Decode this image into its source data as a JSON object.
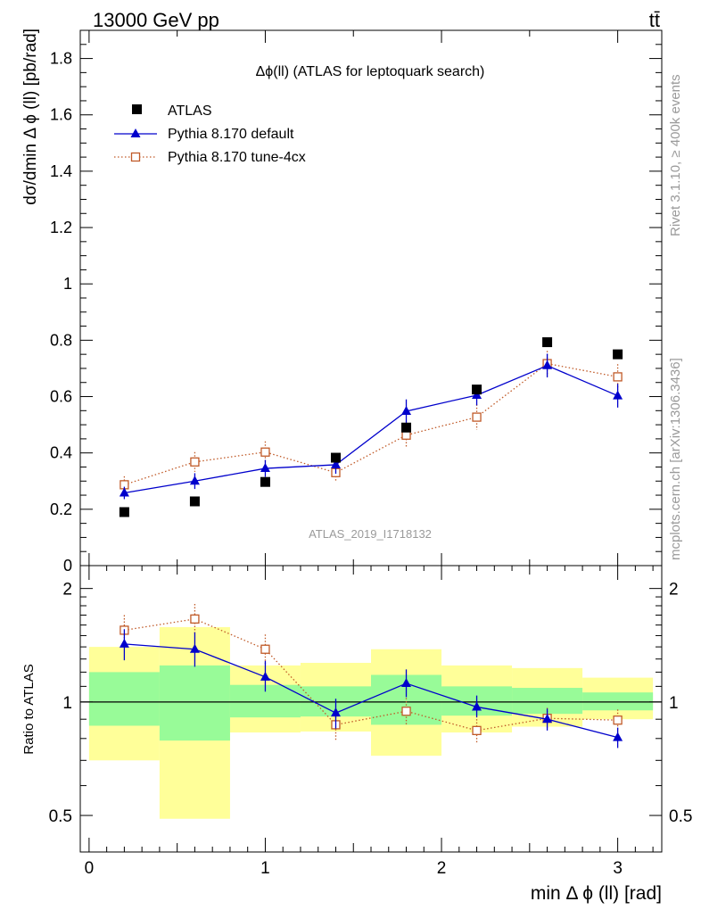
{
  "header": {
    "left": "13000 GeV pp",
    "right": "tt̄"
  },
  "side_labels": {
    "rivet": "Rivet 3.1.10, ≥ 400k events",
    "mcplots": "mcplots.cern.ch [arXiv:1306.3436]"
  },
  "chart_data": [
    {
      "type": "scatter",
      "title": "Δϕ(ll) (ATLAS for leptoquark search)",
      "watermark": "ATLAS_2019_I1718132",
      "xlabel": "min Δ ϕ (ll) [rad]",
      "ylabel": "dσ/dmin Δ ϕ (ll) [pb/rad]",
      "xlim": [
        -0.05,
        3.25
      ],
      "ylim": [
        0,
        1.9
      ],
      "y_ticks": [
        {
          "v": 0,
          "label": "0"
        },
        {
          "v": 0.2,
          "label": "0.2"
        },
        {
          "v": 0.4,
          "label": "0.4"
        },
        {
          "v": 0.6,
          "label": "0.6"
        },
        {
          "v": 0.8,
          "label": "0.8"
        },
        {
          "v": 1.0,
          "label": "1"
        },
        {
          "v": 1.2,
          "label": "1.2"
        },
        {
          "v": 1.4,
          "label": "1.4"
        },
        {
          "v": 1.6,
          "label": "1.6"
        },
        {
          "v": 1.8,
          "label": "1.8"
        }
      ],
      "legend_position": "top-left",
      "series": [
        {
          "name": "ATLAS",
          "style": "data",
          "color": "#000000",
          "x": [
            0.2,
            0.6,
            1.0,
            1.4,
            1.8,
            2.2,
            2.6,
            3.0
          ],
          "y": [
            0.19,
            0.228,
            0.297,
            0.383,
            0.49,
            0.625,
            0.793,
            0.75
          ]
        },
        {
          "name": "Pythia 8.170 default",
          "style": "triangle-solid",
          "color": "#0000cc",
          "x": [
            0.2,
            0.6,
            1.0,
            1.4,
            1.8,
            2.2,
            2.6,
            3.0
          ],
          "y": [
            0.258,
            0.3,
            0.345,
            0.358,
            0.548,
            0.605,
            0.71,
            0.603
          ],
          "err": [
            0.022,
            0.028,
            0.03,
            0.032,
            0.042,
            0.036,
            0.042,
            0.042
          ]
        },
        {
          "name": "Pythia 8.170 tune-4cx",
          "style": "square-dotted",
          "color": "#c05a28",
          "x": [
            0.2,
            0.6,
            1.0,
            1.4,
            1.8,
            2.2,
            2.6,
            3.0
          ],
          "y": [
            0.287,
            0.368,
            0.403,
            0.33,
            0.463,
            0.527,
            0.717,
            0.67
          ],
          "err": [
            0.03,
            0.035,
            0.038,
            0.032,
            0.042,
            0.045,
            0.045,
            0.045
          ]
        }
      ]
    },
    {
      "type": "scatter",
      "ylabel": "Ratio to ATLAS",
      "xlabel": "min Δ ϕ (ll) [rad]",
      "xlim": [
        -0.05,
        3.25
      ],
      "ylim": [
        0.4,
        2.3
      ],
      "y_scale": "log",
      "y_ticks": [
        {
          "v": 0.5,
          "label": "0.5"
        },
        {
          "v": 1,
          "label": "1"
        },
        {
          "v": 2,
          "label": "2"
        }
      ],
      "x_ticks": [
        {
          "v": 0,
          "label": "0"
        },
        {
          "v": 1,
          "label": "1"
        },
        {
          "v": 2,
          "label": "2"
        },
        {
          "v": 3,
          "label": "3"
        }
      ],
      "bands": {
        "bin_edges": [
          0,
          0.4,
          0.8,
          1.2,
          1.6,
          2.0,
          2.4,
          2.8,
          3.2
        ],
        "inner_low": [
          0.865,
          0.79,
          0.91,
          0.915,
          0.87,
          0.92,
          0.93,
          0.95
        ],
        "inner_high": [
          1.2,
          1.25,
          1.11,
          1.1,
          1.18,
          1.1,
          1.09,
          1.06
        ],
        "outer_low": [
          0.7,
          0.49,
          0.83,
          0.835,
          0.72,
          0.83,
          0.86,
          0.9
        ],
        "outer_high": [
          1.4,
          1.58,
          1.25,
          1.27,
          1.38,
          1.25,
          1.23,
          1.16
        ],
        "inner_color": "#98fb98",
        "outer_color": "#ffff99"
      },
      "series": [
        {
          "name": "Pythia 8.170 default",
          "color": "#0000cc",
          "x": [
            0.2,
            0.6,
            1.0,
            1.4,
            1.8,
            2.2,
            2.6,
            3.0
          ],
          "y": [
            1.425,
            1.38,
            1.165,
            0.935,
            1.12,
            0.97,
            0.9,
            0.805
          ],
          "err_low": [
            0.135,
            0.14,
            0.1,
            0.085,
            0.09,
            0.06,
            0.06,
            0.05
          ],
          "err_high": [
            0.135,
            0.15,
            0.12,
            0.085,
            0.1,
            0.07,
            0.06,
            0.05
          ]
        },
        {
          "name": "Pythia 8.170 tune-4cx",
          "color": "#c05a28",
          "x": [
            0.2,
            0.6,
            1.0,
            1.4,
            1.8,
            2.2,
            2.6,
            3.0
          ],
          "y": [
            1.55,
            1.66,
            1.38,
            0.87,
            0.945,
            0.84,
            0.905,
            0.895
          ],
          "err_low": [
            0.14,
            0.15,
            0.12,
            0.08,
            0.08,
            0.06,
            0.06,
            0.06
          ],
          "err_high": [
            0.15,
            0.16,
            0.13,
            0.08,
            0.08,
            0.06,
            0.06,
            0.06
          ]
        }
      ]
    }
  ]
}
